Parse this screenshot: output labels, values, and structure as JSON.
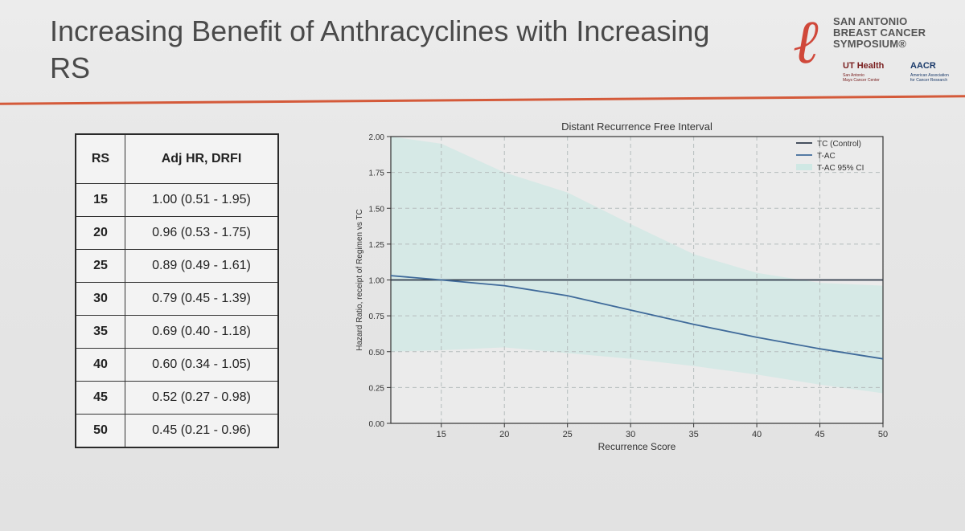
{
  "slide": {
    "title": "Increasing Benefit of Anthracyclines with Increasing RS",
    "accent_color": "#d45a3a"
  },
  "logo": {
    "line1": "SAN ANTONIO",
    "line2": "BREAST CANCER",
    "line3": "SYMPOSIUM®",
    "ut": "UT Health",
    "ut_sub1": "San Antonio",
    "ut_sub2": "Mays Cancer Center",
    "aacr": "AACR",
    "aacr_sub1": "American Association",
    "aacr_sub2": "for Cancer Research"
  },
  "table": {
    "headers": [
      "RS",
      "Adj HR, DRFI"
    ],
    "rows": [
      [
        "15",
        "1.00 (0.51 - 1.95)"
      ],
      [
        "20",
        "0.96 (0.53 - 1.75)"
      ],
      [
        "25",
        "0.89 (0.49 - 1.61)"
      ],
      [
        "30",
        "0.79 (0.45 - 1.39)"
      ],
      [
        "35",
        "0.69 (0.40 - 1.18)"
      ],
      [
        "40",
        "0.60 (0.34 - 1.05)"
      ],
      [
        "45",
        "0.52 (0.27 - 0.98)"
      ],
      [
        "50",
        "0.45 (0.21 - 0.96)"
      ]
    ]
  },
  "chart_data": {
    "type": "line",
    "title": "Distant Recurrence Free Interval",
    "xlabel": "Recurrence Score",
    "ylabel": "Hazard Ratio, receipt of Regimen vs TC",
    "xlim": [
      11,
      50
    ],
    "ylim": [
      0,
      2
    ],
    "xticks": [
      15,
      20,
      25,
      30,
      35,
      40,
      45,
      50
    ],
    "yticks": [
      "0.00",
      "0.25",
      "0.50",
      "0.75",
      "1.00",
      "1.25",
      "1.50",
      "1.75",
      "2.00"
    ],
    "grid": true,
    "legend_position": "top-right",
    "series": [
      {
        "name": "TC (Control)",
        "color": "#2f3a4a",
        "x": [
          11,
          50
        ],
        "y": [
          1.0,
          1.0
        ]
      },
      {
        "name": "T-AC",
        "color": "#3f6a9a",
        "x": [
          11,
          15,
          20,
          25,
          30,
          35,
          40,
          45,
          50
        ],
        "y": [
          1.03,
          1.0,
          0.96,
          0.89,
          0.79,
          0.69,
          0.6,
          0.52,
          0.45
        ]
      }
    ],
    "band": {
      "name": "T-AC 95% CI",
      "color": "#cfe8e4",
      "x": [
        11,
        15,
        20,
        25,
        30,
        35,
        40,
        45,
        50
      ],
      "lower": [
        0.5,
        0.51,
        0.53,
        0.49,
        0.45,
        0.4,
        0.34,
        0.27,
        0.21
      ],
      "upper": [
        2.0,
        1.95,
        1.75,
        1.61,
        1.39,
        1.18,
        1.05,
        0.98,
        0.96
      ]
    }
  }
}
